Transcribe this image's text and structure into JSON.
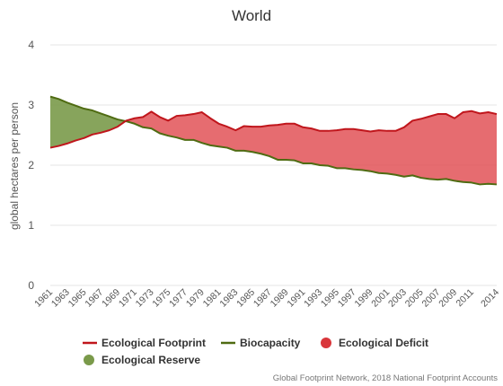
{
  "chart_data": {
    "type": "area",
    "title": "World",
    "ylabel": "global hectares per person",
    "xlabel": "",
    "ylim": [
      0,
      4
    ],
    "yticks": [
      0,
      1,
      2,
      3,
      4
    ],
    "grid": true,
    "legend_position": "bottom",
    "x": [
      1961,
      1962,
      1963,
      1964,
      1965,
      1966,
      1967,
      1968,
      1969,
      1970,
      1971,
      1972,
      1973,
      1974,
      1975,
      1976,
      1977,
      1978,
      1979,
      1980,
      1981,
      1982,
      1983,
      1984,
      1985,
      1986,
      1987,
      1988,
      1989,
      1990,
      1991,
      1992,
      1993,
      1994,
      1995,
      1996,
      1997,
      1998,
      1999,
      2000,
      2001,
      2002,
      2003,
      2004,
      2005,
      2006,
      2007,
      2008,
      2009,
      2010,
      2011,
      2012,
      2013,
      2014
    ],
    "xtick_labels": [
      "1961",
      "1963",
      "1965",
      "1967",
      "1969",
      "1971",
      "1973",
      "1975",
      "1977",
      "1979",
      "1981",
      "1983",
      "1985",
      "1987",
      "1989",
      "1991",
      "1993",
      "1995",
      "1997",
      "1999",
      "2001",
      "2003",
      "2005",
      "2007",
      "2009",
      "2011",
      "2014"
    ],
    "series": [
      {
        "name": "Ecological Footprint",
        "color": "#c0161c",
        "values": [
          2.29,
          2.32,
          2.36,
          2.41,
          2.45,
          2.51,
          2.54,
          2.58,
          2.64,
          2.74,
          2.78,
          2.8,
          2.89,
          2.8,
          2.74,
          2.82,
          2.83,
          2.85,
          2.88,
          2.78,
          2.69,
          2.64,
          2.58,
          2.65,
          2.64,
          2.64,
          2.66,
          2.67,
          2.69,
          2.69,
          2.63,
          2.61,
          2.57,
          2.57,
          2.58,
          2.6,
          2.6,
          2.58,
          2.56,
          2.58,
          2.57,
          2.57,
          2.63,
          2.74,
          2.77,
          2.81,
          2.85,
          2.85,
          2.78,
          2.88,
          2.9,
          2.86,
          2.88,
          2.85
        ]
      },
      {
        "name": "Biocapacity",
        "color": "#4f6b12",
        "values": [
          3.14,
          3.1,
          3.04,
          2.99,
          2.94,
          2.91,
          2.86,
          2.81,
          2.76,
          2.73,
          2.69,
          2.63,
          2.61,
          2.53,
          2.49,
          2.46,
          2.42,
          2.42,
          2.37,
          2.33,
          2.31,
          2.29,
          2.24,
          2.24,
          2.22,
          2.19,
          2.15,
          2.09,
          2.09,
          2.08,
          2.03,
          2.03,
          2.0,
          1.99,
          1.95,
          1.95,
          1.93,
          1.92,
          1.9,
          1.87,
          1.86,
          1.84,
          1.81,
          1.83,
          1.79,
          1.77,
          1.76,
          1.77,
          1.74,
          1.72,
          1.71,
          1.68,
          1.69,
          1.68
        ]
      }
    ],
    "areas": [
      {
        "name": "Ecological Deficit",
        "color": "#e0474c",
        "fill_opacity": 0.8
      },
      {
        "name": "Ecological Reserve",
        "color": "#7a9a4a",
        "fill_opacity": 0.9
      }
    ],
    "legend": [
      {
        "label": "Ecological Footprint",
        "kind": "line",
        "color": "#c0161c"
      },
      {
        "label": "Biocapacity",
        "kind": "line",
        "color": "#4f6b12"
      },
      {
        "label": "Ecological Deficit",
        "kind": "dot",
        "color": "#d9363b"
      },
      {
        "label": "Ecological Reserve",
        "kind": "dot",
        "color": "#7a9a4a"
      }
    ],
    "credit": "Global Footprint Network, 2018 National Footprint Accounts"
  }
}
